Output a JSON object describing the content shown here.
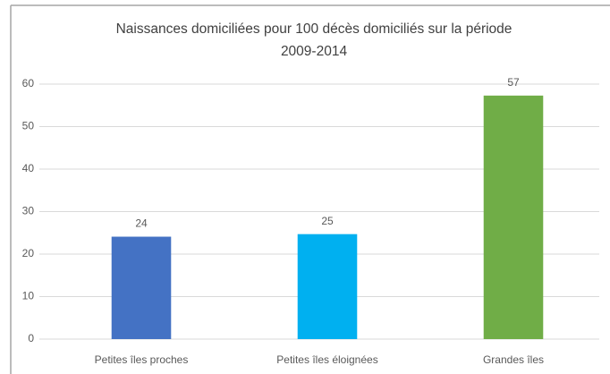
{
  "chart_data": {
    "type": "bar",
    "title": [
      "Naissances domiciliées pour 100 décès domiciliés sur la période",
      "2009-2014"
    ],
    "categories": [
      "Petites îles proches",
      "Petites îles éloignées",
      "Grandes îles"
    ],
    "values": [
      24.1,
      24.7,
      57.3
    ],
    "value_labels": [
      "24",
      "25",
      "57"
    ],
    "colors": [
      "#4472c4",
      "#00b0f0",
      "#70ad47"
    ],
    "ylim": [
      0,
      60
    ],
    "yticks": [
      0,
      10,
      20,
      30,
      40,
      50,
      60
    ],
    "grid": true
  }
}
